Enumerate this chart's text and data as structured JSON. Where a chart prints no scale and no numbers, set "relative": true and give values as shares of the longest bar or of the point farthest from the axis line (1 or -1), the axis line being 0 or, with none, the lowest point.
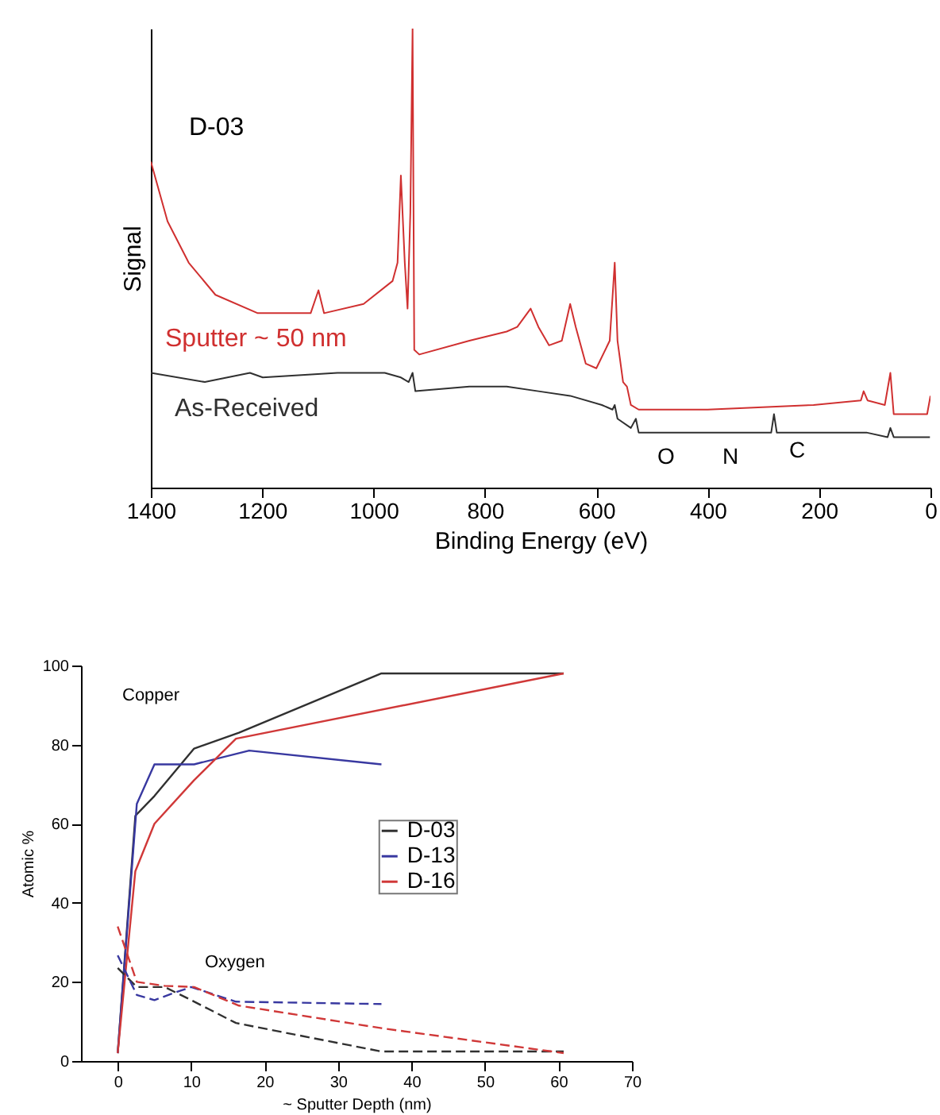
{
  "chart_data": [
    {
      "type": "line",
      "relative": true,
      "xlabel": "Binding Energy (eV)",
      "ylabel": "Signal",
      "xlim": [
        1400,
        0
      ],
      "xticks": [
        1400,
        1200,
        1000,
        800,
        600,
        400,
        200,
        0
      ],
      "annotations": [
        "D-03",
        "O",
        "N",
        "C"
      ],
      "series": [
        {
          "name": "Sputter ~ 50 nm",
          "color": "#d03030",
          "x": [
            1400,
            1370,
            1332,
            1284,
            1208,
            1113,
            1099,
            1089,
            1018,
            966,
            957,
            951,
            944,
            939,
            934,
            930,
            927,
            918,
            828,
            761,
            742,
            718,
            704,
            685,
            662,
            647,
            637,
            619,
            600,
            576,
            567,
            562,
            552,
            545,
            538,
            524,
            400,
            210,
            125,
            120,
            113,
            82,
            72,
            66,
            6,
            0
          ],
          "values": [
            0.71,
            0.58,
            0.49,
            0.42,
            0.38,
            0.38,
            0.43,
            0.38,
            0.4,
            0.45,
            0.49,
            0.68,
            0.49,
            0.39,
            0.6,
            1.0,
            0.3,
            0.29,
            0.32,
            0.34,
            0.35,
            0.39,
            0.35,
            0.31,
            0.32,
            0.4,
            0.35,
            0.27,
            0.26,
            0.32,
            0.49,
            0.32,
            0.23,
            0.22,
            0.18,
            0.17,
            0.17,
            0.18,
            0.19,
            0.21,
            0.19,
            0.18,
            0.25,
            0.16,
            0.16,
            0.2
          ]
        },
        {
          "name": "As-Received",
          "color": "#303030",
          "x": [
            1400,
            1303,
            1222,
            1199,
            1065,
            980,
            951,
            937,
            930,
            925,
            828,
            761,
            704,
            647,
            590,
            571,
            567,
            562,
            538,
            529,
            524,
            400,
            286,
            281,
            276,
            115,
            77,
            72,
            66,
            1
          ],
          "values": [
            0.25,
            0.23,
            0.25,
            0.24,
            0.25,
            0.25,
            0.24,
            0.23,
            0.25,
            0.21,
            0.22,
            0.22,
            0.21,
            0.2,
            0.18,
            0.17,
            0.18,
            0.15,
            0.13,
            0.15,
            0.12,
            0.12,
            0.12,
            0.16,
            0.12,
            0.12,
            0.11,
            0.13,
            0.11,
            0.11
          ]
        }
      ]
    },
    {
      "type": "line",
      "xlabel": "~ Sputter Depth (nm)",
      "ylabel": "Atomic %",
      "xlim": [
        -5,
        70
      ],
      "ylim": [
        0,
        100
      ],
      "xticks": [
        0,
        10,
        20,
        30,
        40,
        50,
        60,
        70
      ],
      "yticks": [
        0,
        20,
        40,
        60,
        80,
        100
      ],
      "legend": "right",
      "annotations": [
        "Copper",
        "Oxygen"
      ],
      "series": [
        {
          "name": "D-03",
          "color": "#303030",
          "x": [
            0,
            2.4,
            5,
            10.4,
            16.5,
            35.9,
            60.7
          ],
          "values": [
            2,
            62,
            67,
            79,
            83,
            98,
            98
          ]
        },
        {
          "name": "D-13",
          "color": "#3838a0",
          "x": [
            0,
            2.6,
            5,
            10.4,
            17.9,
            35.9
          ],
          "values": [
            2,
            65,
            75,
            75,
            78.5,
            75
          ]
        },
        {
          "name": "D-16",
          "color": "#d03838",
          "x": [
            0,
            2.4,
            5,
            10.4,
            16.1,
            60.7
          ],
          "values": [
            2,
            48,
            60,
            71,
            81.5,
            98
          ]
        },
        {
          "color": "#303030",
          "line_style": "dashed",
          "x": [
            0,
            2.6,
            6.4,
            10,
            16.1,
            35.9,
            60.7
          ],
          "values": [
            23.5,
            18.7,
            18.7,
            15.4,
            9.6,
            2.4,
            2.4
          ]
        },
        {
          "color": "#3838a0",
          "line_style": "dashed",
          "x": [
            0,
            2.6,
            5,
            7.5,
            10,
            16.1,
            35.9
          ],
          "values": [
            26.7,
            16.7,
            15.4,
            17.1,
            18.7,
            15,
            14.4
          ]
        },
        {
          "color": "#d03838",
          "line_style": "dashed",
          "x": [
            0,
            2.6,
            6.4,
            10.4,
            16.5,
            35.9,
            60.7
          ],
          "values": [
            34,
            20,
            19,
            18.7,
            14,
            8.3,
            2
          ]
        }
      ]
    }
  ]
}
